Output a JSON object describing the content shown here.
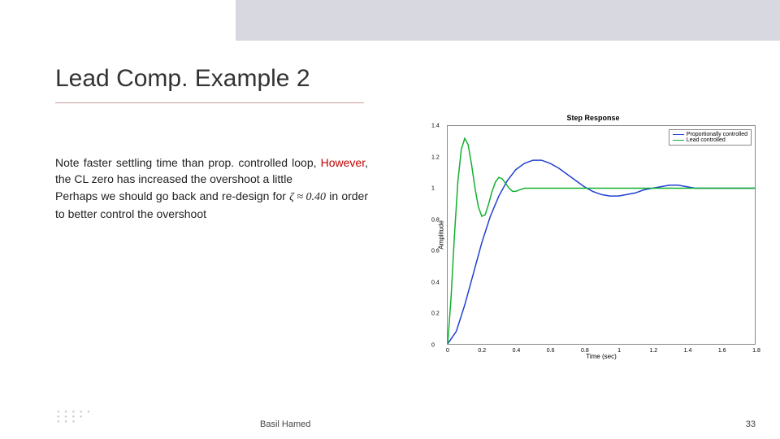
{
  "slide": {
    "title": "Lead Comp. Example 2",
    "para1a": "Note faster settling time than prop. controlled loop, ",
    "para1_however": "However",
    "para1b": ", the CL zero has increased the overshoot a little",
    "para2a": "Perhaps we should go back and re-design for ",
    "zeta_expr": "ζ ≈ 0.40",
    "para2b": " in order to better control the overshoot",
    "author": "Basil Hamed",
    "page": "33"
  },
  "chart": {
    "type": "line",
    "title": "Step Response",
    "xlabel": "Time (sec)",
    "ylabel": "Amplitude",
    "xlim": [
      0,
      1.8
    ],
    "ylim": [
      0,
      1.4
    ],
    "xticks": [
      0,
      0.2,
      0.4,
      0.6,
      0.8,
      1,
      1.2,
      1.4,
      1.6,
      1.8
    ],
    "yticks": [
      0,
      0.2,
      0.4,
      0.6,
      0.8,
      1,
      1.2,
      1.4
    ],
    "background_color": "#ffffff",
    "axis_color": "#888888",
    "line_width": 1.5,
    "series": [
      {
        "name": "Proportionally controlled",
        "color": "#2040d0",
        "data": [
          [
            0,
            0
          ],
          [
            0.05,
            0.08
          ],
          [
            0.1,
            0.25
          ],
          [
            0.15,
            0.45
          ],
          [
            0.2,
            0.65
          ],
          [
            0.25,
            0.82
          ],
          [
            0.3,
            0.95
          ],
          [
            0.35,
            1.05
          ],
          [
            0.4,
            1.12
          ],
          [
            0.45,
            1.16
          ],
          [
            0.5,
            1.18
          ],
          [
            0.55,
            1.18
          ],
          [
            0.6,
            1.16
          ],
          [
            0.65,
            1.13
          ],
          [
            0.7,
            1.09
          ],
          [
            0.75,
            1.05
          ],
          [
            0.8,
            1.01
          ],
          [
            0.85,
            0.98
          ],
          [
            0.9,
            0.96
          ],
          [
            0.95,
            0.95
          ],
          [
            1.0,
            0.95
          ],
          [
            1.05,
            0.96
          ],
          [
            1.1,
            0.97
          ],
          [
            1.15,
            0.99
          ],
          [
            1.2,
            1.0
          ],
          [
            1.25,
            1.01
          ],
          [
            1.3,
            1.02
          ],
          [
            1.35,
            1.02
          ],
          [
            1.4,
            1.01
          ],
          [
            1.45,
            1.0
          ],
          [
            1.5,
            1.0
          ],
          [
            1.6,
            1.0
          ],
          [
            1.7,
            1.0
          ],
          [
            1.8,
            1.0
          ]
        ]
      },
      {
        "name": "Lead controlled",
        "color": "#10b030",
        "data": [
          [
            0,
            0
          ],
          [
            0.02,
            0.3
          ],
          [
            0.04,
            0.7
          ],
          [
            0.06,
            1.05
          ],
          [
            0.08,
            1.25
          ],
          [
            0.1,
            1.32
          ],
          [
            0.12,
            1.28
          ],
          [
            0.14,
            1.15
          ],
          [
            0.16,
            1.0
          ],
          [
            0.18,
            0.88
          ],
          [
            0.2,
            0.82
          ],
          [
            0.22,
            0.83
          ],
          [
            0.24,
            0.9
          ],
          [
            0.26,
            0.98
          ],
          [
            0.28,
            1.04
          ],
          [
            0.3,
            1.07
          ],
          [
            0.32,
            1.06
          ],
          [
            0.34,
            1.03
          ],
          [
            0.36,
            1.0
          ],
          [
            0.38,
            0.98
          ],
          [
            0.4,
            0.98
          ],
          [
            0.42,
            0.99
          ],
          [
            0.45,
            1.0
          ],
          [
            0.5,
            1.0
          ],
          [
            0.6,
            1.0
          ],
          [
            0.8,
            1.0
          ],
          [
            1.0,
            1.0
          ],
          [
            1.2,
            1.0
          ],
          [
            1.4,
            1.0
          ],
          [
            1.6,
            1.0
          ],
          [
            1.8,
            1.0
          ]
        ]
      }
    ],
    "legend_position": "top-right",
    "title_fontsize": 9,
    "tick_fontsize": 7,
    "label_fontsize": 8
  }
}
